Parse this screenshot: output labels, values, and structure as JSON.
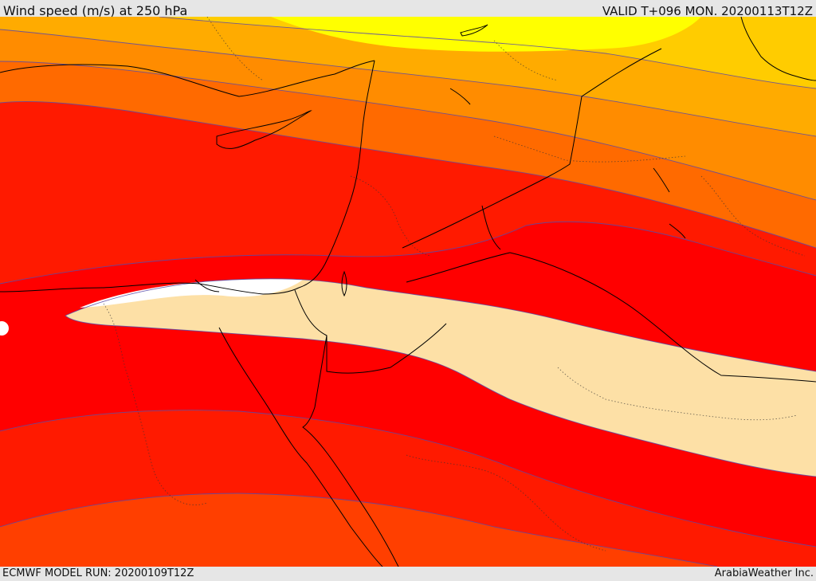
{
  "header": {
    "title": "Wind speed (m/s) at 250 hPa",
    "valid": "VALID T+096 MON. 20200113T12Z"
  },
  "footer": {
    "model_run": "ECMWF MODEL RUN: 20200109T12Z",
    "credit": "ArabiaWeather Inc."
  },
  "map": {
    "variable": "wind speed at 250 hPa",
    "colors": {
      "yellow": "#ffff00",
      "gold": "#ffcc00",
      "orange_light": "#ffab00",
      "orange": "#ff8c00",
      "orange_dark": "#ff6a00",
      "red_orange": "#ff3f00",
      "red": "#ff1a00",
      "pure_red": "#ff0000",
      "jet_core": "#fde0a6",
      "jet_max": "#ffffff",
      "contour": "#5a4aa8",
      "coast": "#000000"
    }
  }
}
